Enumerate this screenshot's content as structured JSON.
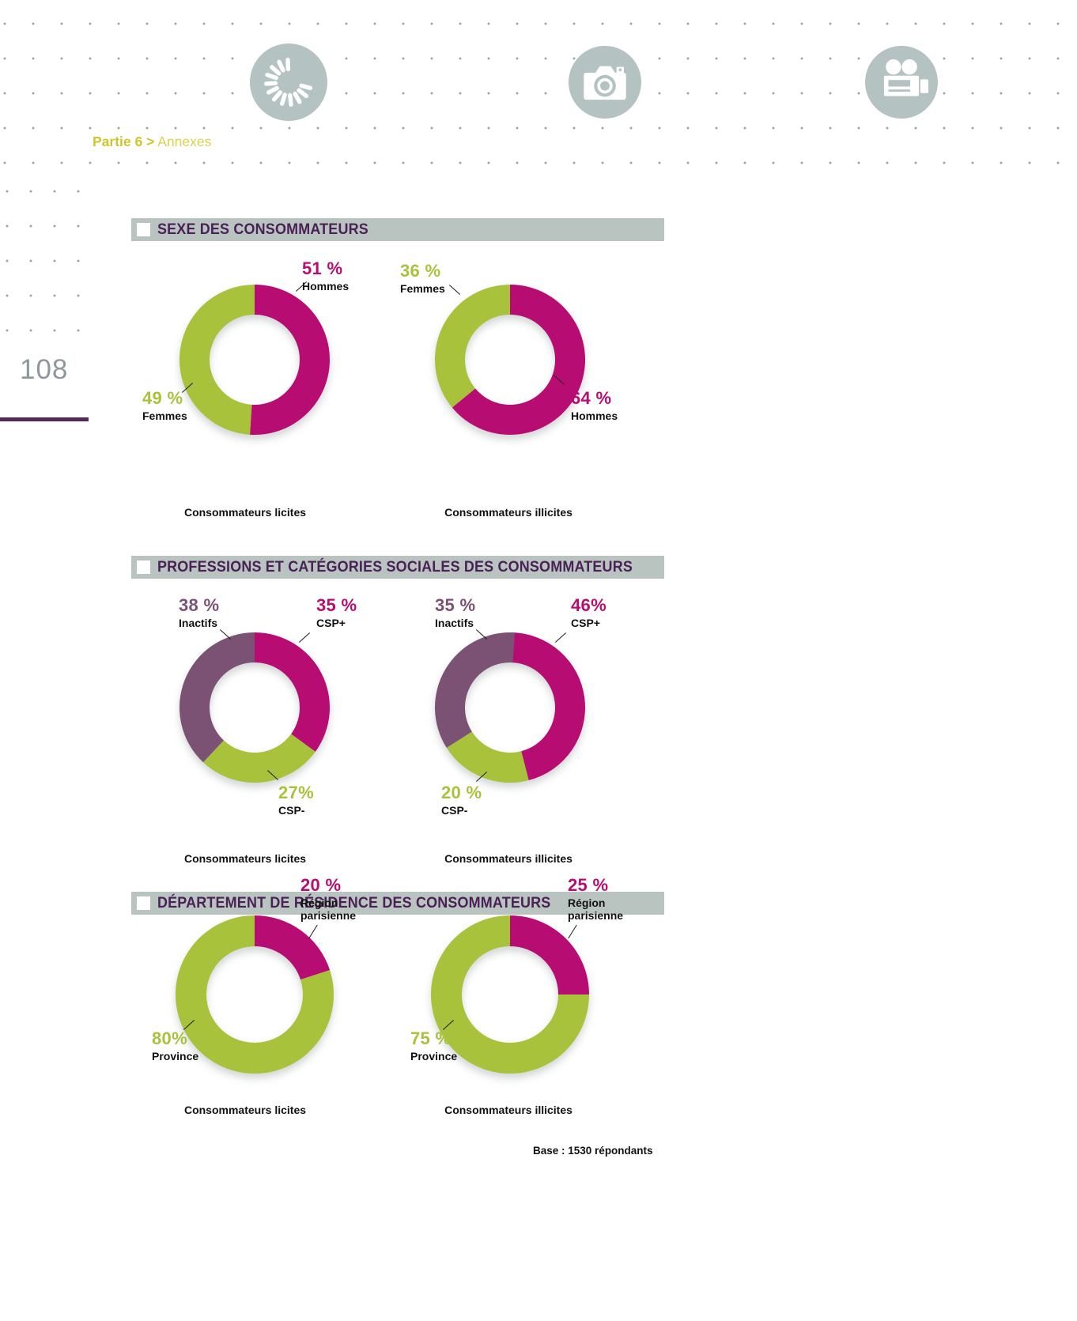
{
  "page": {
    "breadcrumb": {
      "part": "Partie 6 >",
      "section": "Annexes"
    },
    "number": "108",
    "base_note": "Base : 1530 répondants"
  },
  "header_icons": [
    {
      "name": "loading-spinner-icon"
    },
    {
      "name": "photo-camera-icon"
    },
    {
      "name": "film-camera-icon"
    }
  ],
  "colors": {
    "magenta": "#b70d72",
    "green": "#a8c23c",
    "plum": "#7b5274",
    "header_bar": "#b9c4c1",
    "header_text": "#4a2156",
    "icon_circle": "#b5c2c2",
    "breadcrumb_yellow": "#d5ca2f",
    "page_number_gray": "#8d979c",
    "rule_purple": "#572757",
    "dot_gray": "#9aa3a3"
  },
  "sections": [
    {
      "title": "SEXE DES CONSOMMATEURS"
    },
    {
      "title": "PROFESSIONS ET CATÉGORIES SOCIALES DES CONSOMMATEURS"
    },
    {
      "title": "DÉPARTEMENT DE RÉSIDENCE DES CONSOMMATEURS"
    }
  ],
  "chart_data": [
    {
      "type": "pie",
      "subtype": "donut",
      "group": "Sexe des consommateurs",
      "title": "Consommateurs licites",
      "categories": [
        "Hommes",
        "Femmes"
      ],
      "values": [
        51,
        49
      ],
      "value_labels": [
        "51 %",
        "49 %"
      ],
      "colors": [
        "#b70d72",
        "#a8c23c"
      ],
      "start_angle_deg": 0,
      "clockwise": true,
      "layout": {
        "size": 210,
        "outer_r": 95,
        "inner_r": 57
      }
    },
    {
      "type": "pie",
      "subtype": "donut",
      "group": "Sexe des consommateurs",
      "title": "Consommateurs illicites",
      "categories": [
        "Hommes",
        "Femmes"
      ],
      "values": [
        64,
        36
      ],
      "value_labels": [
        "64 %",
        "36 %"
      ],
      "colors": [
        "#b70d72",
        "#a8c23c"
      ],
      "start_angle_deg": 0,
      "clockwise": true,
      "layout": {
        "size": 210,
        "outer_r": 95,
        "inner_r": 57
      }
    },
    {
      "type": "pie",
      "subtype": "donut",
      "group": "Professions et catégories sociales des consommateurs",
      "title": "Consommateurs licites",
      "categories": [
        "CSP+",
        "CSP-",
        "Inactifs"
      ],
      "values": [
        35,
        27,
        38
      ],
      "value_labels": [
        "35 %",
        "27%",
        "38 %"
      ],
      "colors": [
        "#b70d72",
        "#a8c23c",
        "#7b5274"
      ],
      "start_angle_deg": 0,
      "clockwise": true,
      "layout": {
        "size": 210,
        "outer_r": 95,
        "inner_r": 57
      }
    },
    {
      "type": "pie",
      "subtype": "donut",
      "group": "Professions et catégories sociales des consommateurs",
      "title": "Consommateurs illicites",
      "categories": [
        "CSP+",
        "CSP-",
        "Inactifs"
      ],
      "values": [
        46,
        20,
        35
      ],
      "value_labels": [
        "46%",
        "20 %",
        "35 %"
      ],
      "colors": [
        "#b70d72",
        "#a8c23c",
        "#7b5274"
      ],
      "start_angle_deg": 0,
      "clockwise": true,
      "layout": {
        "size": 210,
        "outer_r": 95,
        "inner_r": 57
      }
    },
    {
      "type": "pie",
      "subtype": "donut",
      "group": "Département de résidence des consommateurs",
      "title": "Consommateurs licites",
      "categories": [
        "Région parisienne",
        "Province"
      ],
      "values": [
        20,
        80
      ],
      "value_labels": [
        "20 %",
        "80%"
      ],
      "colors": [
        "#b70d72",
        "#a8c23c"
      ],
      "start_angle_deg": 0,
      "clockwise": true,
      "layout": {
        "size": 210,
        "outer_r": 100,
        "inner_r": 61
      }
    },
    {
      "type": "pie",
      "subtype": "donut",
      "group": "Département de résidence des consommateurs",
      "title": "Consommateurs illicites",
      "categories": [
        "Région parisienne",
        "Province"
      ],
      "values": [
        25,
        75
      ],
      "value_labels": [
        "25 %",
        "75 %"
      ],
      "colors": [
        "#b70d72",
        "#a8c23c"
      ],
      "start_angle_deg": 0,
      "clockwise": true,
      "layout": {
        "size": 210,
        "outer_r": 100,
        "inner_r": 61
      }
    }
  ]
}
